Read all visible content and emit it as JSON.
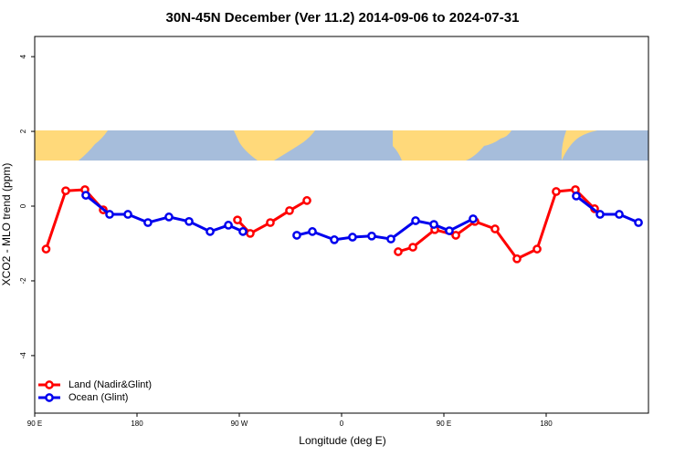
{
  "chart_data": {
    "type": "line",
    "title": "30N-45N December (Ver 11.2)   2014-09-06 to 2024-07-31",
    "x_label": "Longitude (deg E)",
    "y_label": "XCO2 - MLO trend (ppm)",
    "xlim": [
      90,
      630
    ],
    "xticks": [
      {
        "value": 90,
        "label": "90 E"
      },
      180,
      {
        "value": 270,
        "label": "90 W"
      },
      {
        "value": 360,
        "label": "0"
      },
      {
        "value": 450,
        "label": "90 E"
      },
      {
        "value": 540,
        "label": "180"
      }
    ],
    "ylim": [
      -5.54,
      4.54
    ],
    "yticks": [
      -4,
      -2,
      0,
      2,
      4
    ],
    "legend": "bottom-left",
    "series": [
      {
        "name": "Land (Nadir&Glint)",
        "color": "#ff0000",
        "x": [
          100,
          117.3,
          134.2,
          150.3,
          null,
          268.4,
          279.6,
          297.3,
          314.2,
          329.5,
          null,
          409.8,
          422.7,
          442,
          460.5,
          477.3,
          495,
          514.3,
          532,
          548.8,
          565.7,
          582.6
        ],
        "values": [
          -1.15,
          0.41,
          0.44,
          -0.1,
          null,
          -0.37,
          -0.73,
          -0.44,
          -0.12,
          0.15,
          null,
          -1.22,
          -1.1,
          -0.63,
          -0.78,
          -0.41,
          -0.61,
          -1.41,
          -1.15,
          0.39,
          0.44,
          -0.07
        ]
      },
      {
        "name": "Ocean (Glint)",
        "color": "#0000ee",
        "x": [
          135,
          155.9,
          172,
          189.6,
          208.1,
          225.8,
          244.3,
          260.4,
          273.2,
          null,
          320.6,
          334.3,
          353.6,
          369.6,
          386.5,
          403.4,
          425.1,
          441.2,
          454.8,
          475.7,
          null,
          566.5,
          587.4,
          604.3,
          621.2
        ],
        "values": [
          0.29,
          -0.22,
          -0.22,
          -0.44,
          -0.29,
          -0.41,
          -0.68,
          -0.51,
          -0.68,
          null,
          -0.78,
          -0.68,
          -0.9,
          -0.83,
          -0.8,
          -0.88,
          -0.39,
          -0.49,
          -0.66,
          -0.34,
          null,
          0.27,
          -0.22,
          -0.22,
          -0.44
        ]
      }
    ]
  }
}
